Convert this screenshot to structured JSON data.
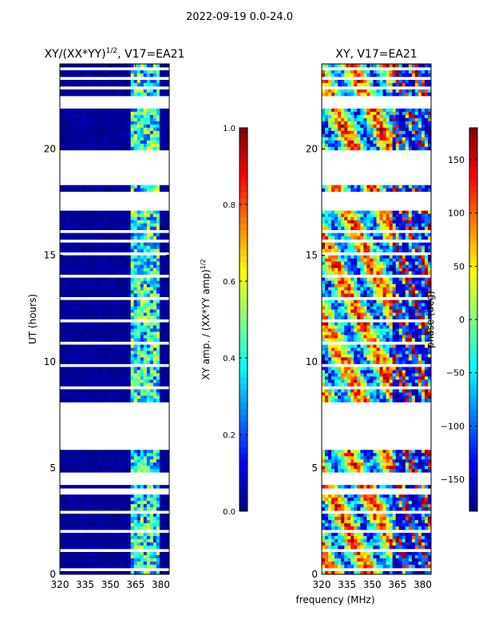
{
  "figure": {
    "suptitle": "2022-09-19 0.0-24.0",
    "xlabel_shared": "frequency (MHz)"
  },
  "chart_data": [
    {
      "type": "heatmap",
      "title_main": "XY/(XX*YY)",
      "title_sup": "1/2",
      "title_tail": ", V17=EA21",
      "xlabel": "frequency (MHz)",
      "ylabel": "UT (hours)",
      "xlim": [
        320,
        385
      ],
      "ylim": [
        0,
        24
      ],
      "xticks": [
        320,
        335,
        350,
        365,
        380
      ],
      "yticks": [
        0,
        5,
        10,
        15,
        20
      ],
      "colorbar": {
        "label_main": "XY amp. / (XX*YY amp)",
        "label_sup": "1/2",
        "range": [
          0.0,
          1.0
        ],
        "ticks": [
          "0.0",
          "0.2",
          "0.4",
          "0.6",
          "0.8",
          "1.0"
        ],
        "tick_values": [
          0.0,
          0.2,
          0.4,
          0.6,
          0.8,
          1.0
        ],
        "colormap": "jet"
      },
      "gaps_hours": [
        [
          7.65,
          8.1
        ],
        [
          5.9,
          7.65
        ],
        [
          17.3,
          18.0
        ],
        [
          18.3,
          19.9
        ],
        [
          22.1,
          22.45
        ],
        [
          4.25,
          4.75
        ],
        [
          3.95,
          4.05
        ],
        [
          15.65,
          15.72
        ]
      ],
      "typical_value": 0.05,
      "rfi_band_mhz": [
        363,
        380
      ],
      "rfi_value_range": [
        0.15,
        0.75
      ]
    },
    {
      "type": "heatmap",
      "title": "XY, V17=EA21",
      "xlabel": "frequency (MHz)",
      "ylabel": "",
      "xlim": [
        320,
        385
      ],
      "ylim": [
        0,
        24
      ],
      "xticks": [
        320,
        335,
        350,
        365,
        380
      ],
      "yticks": [
        0,
        5,
        10,
        15,
        20
      ],
      "colorbar": {
        "label": "phase (deg)",
        "range": [
          -180,
          180
        ],
        "ticks": [
          "150",
          "100",
          "50",
          "0",
          "−50",
          "−100",
          "−150"
        ],
        "tick_values": [
          150,
          100,
          50,
          0,
          -50,
          -100,
          -150
        ],
        "colormap": "jet"
      },
      "gaps_hours": [
        [
          7.65,
          8.1
        ],
        [
          5.9,
          7.65
        ],
        [
          17.3,
          18.0
        ],
        [
          18.3,
          19.9
        ],
        [
          22.1,
          22.45
        ],
        [
          4.25,
          4.75
        ],
        [
          3.95,
          4.05
        ],
        [
          15.65,
          15.72
        ]
      ],
      "phase_range_deg": [
        -180,
        180
      ]
    }
  ]
}
